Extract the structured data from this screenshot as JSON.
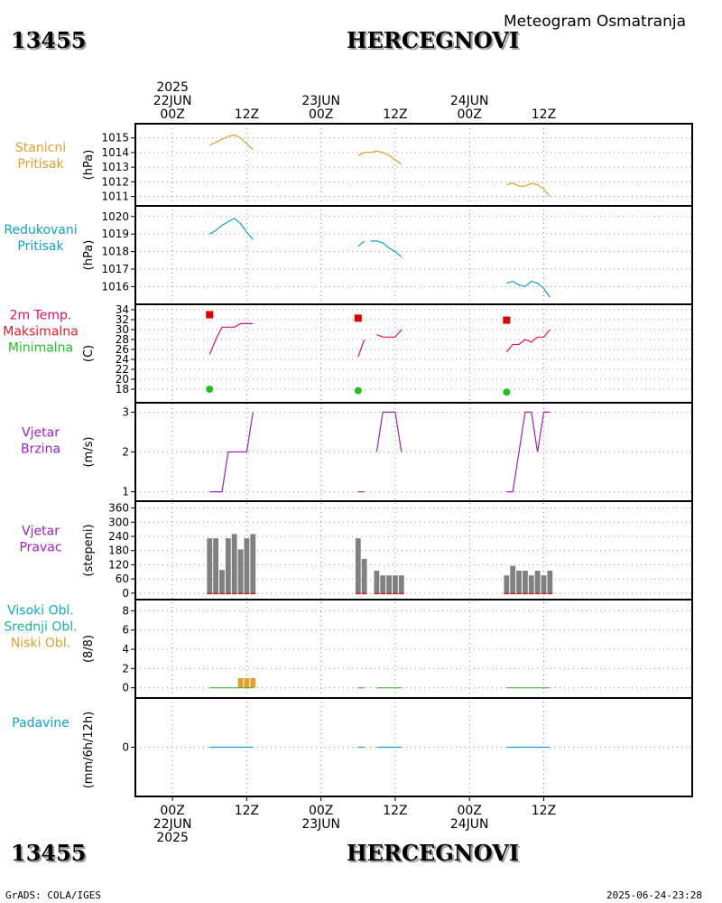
{
  "header": {
    "station_id": "13455",
    "station_name": "HERCEGNOVI",
    "subtitle": "Meteogram Osmatranja"
  },
  "footer": {
    "credit": "GrADS: COLA/IGES",
    "timestamp": "2025-06-24-23:28"
  },
  "chart_data": {
    "type": "meteogram",
    "time_axis": {
      "unit": "hours since 2025-06-22 00Z",
      "range": [
        -6,
        84
      ],
      "top_labels": [
        {
          "t": 0,
          "lines": [
            "2025",
            "22JUN",
            "00Z"
          ]
        },
        {
          "t": 12,
          "lines": [
            "12Z"
          ]
        },
        {
          "t": 24,
          "lines": [
            "23JUN",
            "00Z"
          ]
        },
        {
          "t": 36,
          "lines": [
            "12Z"
          ]
        },
        {
          "t": 48,
          "lines": [
            "24JUN",
            "00Z"
          ]
        },
        {
          "t": 60,
          "lines": [
            "12Z"
          ]
        }
      ],
      "bottom_labels": [
        {
          "t": 0,
          "lines": [
            "00Z",
            "22JUN",
            "2025"
          ]
        },
        {
          "t": 12,
          "lines": [
            "12Z"
          ]
        },
        {
          "t": 24,
          "lines": [
            "00Z",
            "23JUN"
          ]
        },
        {
          "t": 36,
          "lines": [
            "12Z"
          ]
        },
        {
          "t": 48,
          "lines": [
            "00Z",
            "24JUN"
          ]
        },
        {
          "t": 60,
          "lines": [
            "12Z"
          ]
        }
      ]
    },
    "panels": [
      {
        "id": "station_pressure",
        "labels": [
          {
            "text": "Stanicni",
            "color": "#e0a030"
          },
          {
            "text": "Pritisak",
            "color": "#e0a030"
          }
        ],
        "unit": "(hPa)",
        "ylim": [
          1010.6,
          1015.6
        ],
        "ticks": [
          1011,
          1012,
          1013,
          1014,
          1015
        ],
        "lines": [
          {
            "color": "#e0a030",
            "segments": [
              [
                [
                  6,
                  1014.5
                ],
                [
                  7,
                  1014.7
                ],
                [
                  8,
                  1014.9
                ],
                [
                  9,
                  1015.1
                ],
                [
                  10,
                  1015.2
                ],
                [
                  11,
                  1015.0
                ],
                [
                  12,
                  1014.6
                ],
                [
                  13,
                  1014.2
                ]
              ],
              [
                [
                  30,
                  1013.8
                ],
                [
                  31,
                  1014.0
                ],
                [
                  32,
                  1014.0
                ],
                [
                  33,
                  1014.1
                ],
                [
                  34,
                  1014.0
                ],
                [
                  35,
                  1013.8
                ],
                [
                  36,
                  1013.5
                ],
                [
                  37,
                  1013.2
                ]
              ],
              [
                [
                  54,
                  1011.8
                ],
                [
                  55,
                  1011.9
                ],
                [
                  56,
                  1011.7
                ],
                [
                  57,
                  1011.7
                ],
                [
                  58,
                  1011.9
                ],
                [
                  59,
                  1011.8
                ],
                [
                  60,
                  1011.5
                ],
                [
                  61,
                  1011.0
                ]
              ]
            ]
          }
        ]
      },
      {
        "id": "reduced_pressure",
        "labels": [
          {
            "text": "Redukovani",
            "color": "#10a0d0"
          },
          {
            "text": "Pritisak",
            "color": "#10a0d0"
          }
        ],
        "unit": "(hPa)",
        "ylim": [
          1015.3,
          1020.4
        ],
        "ticks": [
          1016,
          1017,
          1018,
          1019,
          1020
        ],
        "lines": [
          {
            "color": "#10a0d0",
            "segments": [
              [
                [
                  6,
                  1019.0
                ],
                [
                  7,
                  1019.2
                ],
                [
                  8,
                  1019.5
                ],
                [
                  9,
                  1019.7
                ],
                [
                  10,
                  1019.9
                ],
                [
                  11,
                  1019.6
                ],
                [
                  12,
                  1019.1
                ],
                [
                  13,
                  1018.7
                ]
              ],
              [
                [
                  30,
                  1018.3
                ],
                [
                  31,
                  1018.6
                ]
              ],
              [
                [
                  32,
                  1018.6
                ],
                [
                  33,
                  1018.6
                ],
                [
                  34,
                  1018.5
                ],
                [
                  35,
                  1018.2
                ],
                [
                  36,
                  1018.0
                ],
                [
                  37,
                  1017.7
                ]
              ],
              [
                [
                  54,
                  1016.2
                ],
                [
                  55,
                  1016.3
                ],
                [
                  56,
                  1016.1
                ],
                [
                  57,
                  1016.0
                ],
                [
                  58,
                  1016.3
                ],
                [
                  59,
                  1016.2
                ],
                [
                  60,
                  1015.9
                ],
                [
                  61,
                  1015.4
                ]
              ]
            ]
          }
        ]
      },
      {
        "id": "temperature",
        "labels": [
          {
            "text": "2m Temp.",
            "color": "#e0106a"
          },
          {
            "text": "Maksimalna",
            "color": "#e02020"
          },
          {
            "text": "Minimalna",
            "color": "#20c020"
          }
        ],
        "unit": "(C)",
        "ylim": [
          16,
          34
        ],
        "ticks": [
          18,
          20,
          22,
          24,
          26,
          28,
          30,
          32,
          34
        ],
        "lines": [
          {
            "color": "#e0106a",
            "segments": [
              [
                [
                  6,
                  25.0
                ],
                [
                  7,
                  28.0
                ],
                [
                  8,
                  30.5
                ],
                [
                  10,
                  30.5
                ],
                [
                  11,
                  31.2
                ],
                [
                  13,
                  31.2
                ]
              ],
              [
                [
                  30,
                  24.5
                ],
                [
                  31,
                  28.0
                ]
              ],
              [
                [
                  33,
                  29.0
                ],
                [
                  34,
                  28.5
                ],
                [
                  36,
                  28.5
                ],
                [
                  37,
                  30.0
                ]
              ],
              [
                [
                  54,
                  25.5
                ],
                [
                  55,
                  27.0
                ],
                [
                  56,
                  27.0
                ],
                [
                  57,
                  28.0
                ],
                [
                  58,
                  27.5
                ],
                [
                  59,
                  28.5
                ],
                [
                  60,
                  28.5
                ],
                [
                  61,
                  30.0
                ]
              ]
            ]
          }
        ],
        "points": [
          {
            "kind": "square",
            "color": "#e00000",
            "series": "Maksimalna",
            "data": [
              [
                6,
                33.0
              ],
              [
                30,
                32.3
              ],
              [
                54,
                31.9
              ]
            ]
          },
          {
            "kind": "circle",
            "color": "#20c020",
            "series": "Minimalna",
            "data": [
              [
                6,
                18.0
              ],
              [
                30,
                17.7
              ],
              [
                54,
                17.4
              ]
            ]
          }
        ]
      },
      {
        "id": "wind_speed",
        "labels": [
          {
            "text": "Vjetar",
            "color": "#a020c0"
          },
          {
            "text": "Brzina",
            "color": "#a020c0"
          }
        ],
        "unit": "(m/s)",
        "ylim": [
          0.9,
          3.1
        ],
        "ticks": [
          1,
          2,
          3
        ],
        "lines": [
          {
            "color": "#a020c0",
            "segments": [
              [
                [
                  6,
                  1
                ],
                [
                  8,
                  1
                ],
                [
                  9,
                  2
                ],
                [
                  12,
                  2
                ],
                [
                  13,
                  3
                ]
              ],
              [
                [
                  30,
                  1
                ],
                [
                  31,
                  1
                ]
              ],
              [
                [
                  33,
                  2
                ],
                [
                  34,
                  3
                ],
                [
                  36,
                  3
                ],
                [
                  37,
                  2
                ]
              ],
              [
                [
                  54,
                  1
                ],
                [
                  55,
                  1
                ],
                [
                  57,
                  3
                ],
                [
                  58,
                  3
                ],
                [
                  59,
                  2
                ],
                [
                  60,
                  3
                ],
                [
                  61,
                  3
                ]
              ]
            ]
          }
        ]
      },
      {
        "id": "wind_direction",
        "labels": [
          {
            "text": "Vjetar",
            "color": "#a020c0"
          },
          {
            "text": "Pravac",
            "color": "#a020c0"
          }
        ],
        "unit": "(stepeni)",
        "ylim": [
          -12,
          366
        ],
        "ticks": [
          0,
          60,
          120,
          180,
          240,
          300,
          360
        ],
        "bars": {
          "color": "#808080",
          "data": [
            [
              6,
              232
            ],
            [
              7,
              232
            ],
            [
              8,
              98
            ],
            [
              9,
              232
            ],
            [
              10,
              250
            ],
            [
              11,
              185
            ],
            [
              12,
              232
            ],
            [
              13,
              250
            ],
            [
              30,
              232
            ],
            [
              31,
              145
            ],
            [
              33,
              95
            ],
            [
              34,
              75
            ],
            [
              35,
              75
            ],
            [
              36,
              75
            ],
            [
              37,
              75
            ],
            [
              54,
              75
            ],
            [
              55,
              115
            ],
            [
              56,
              95
            ],
            [
              57,
              95
            ],
            [
              58,
              75
            ],
            [
              59,
              95
            ],
            [
              60,
              75
            ],
            [
              61,
              95
            ]
          ]
        },
        "baseline_color": "#c02020"
      },
      {
        "id": "clouds",
        "labels": [
          {
            "text": "Visoki Obl.",
            "color": "#10a8c8"
          },
          {
            "text": "Srednji Obl.",
            "color": "#20b0a0"
          },
          {
            "text": "Niski Obl.",
            "color": "#e0a030"
          }
        ],
        "unit": "(8/8)",
        "ylim": [
          -0.5,
          8.6
        ],
        "ticks": [
          0,
          2,
          4,
          6,
          8
        ],
        "bars": {
          "color": "#e0a030",
          "data": [
            [
              11,
              1
            ],
            [
              12,
              1
            ],
            [
              13,
              1
            ]
          ]
        },
        "baseline_segments": {
          "color": "#50b040",
          "data": [
            [
              6,
              13
            ],
            [
              30,
              31
            ],
            [
              33,
              37
            ],
            [
              54,
              61
            ]
          ]
        }
      },
      {
        "id": "precip",
        "labels": [
          {
            "text": "Padavine",
            "color": "#10a0d0"
          }
        ],
        "unit": "(mm/6h/12h)",
        "ylim": [
          -5,
          5
        ],
        "ticks": [
          0
        ],
        "baseline_segments": {
          "color": "#10a0d0",
          "data": [
            [
              6,
              13
            ],
            [
              30,
              31
            ],
            [
              33,
              37
            ],
            [
              54,
              61
            ]
          ]
        }
      }
    ]
  }
}
